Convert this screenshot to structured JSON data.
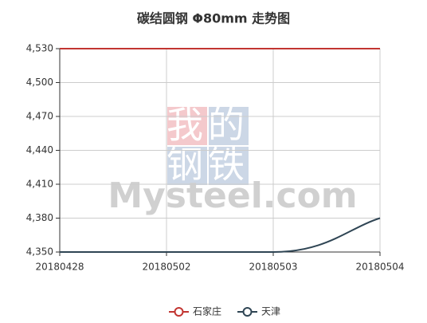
{
  "chart_data": {
    "type": "line",
    "title": "碳结圆钢 Φ80mm 走势图",
    "categories": [
      "20180428",
      "20180502",
      "20180503",
      "20180504"
    ],
    "series": [
      {
        "name": "石家庄",
        "color": "#c23531",
        "values": [
          4530,
          4530,
          4530,
          4530
        ]
      },
      {
        "name": "天津",
        "color": "#2f4554",
        "values": [
          4350,
          4350,
          4350,
          4380
        ]
      }
    ],
    "ylim": [
      4350,
      4530
    ],
    "yticks": [
      {
        "value": 4350,
        "label": "4,350"
      },
      {
        "value": 4380,
        "label": "4,380"
      },
      {
        "value": 4410,
        "label": "4,410"
      },
      {
        "value": 4440,
        "label": "4,440"
      },
      {
        "value": 4470,
        "label": "4,470"
      },
      {
        "value": 4500,
        "label": "4,500"
      },
      {
        "value": 4530,
        "label": "4,530"
      }
    ],
    "grid": true,
    "smooth": true,
    "legend": "bottom",
    "watermark": {
      "logo_top": "我的",
      "logo_bottom": "钢铁",
      "site": "Mysteel.com"
    }
  }
}
